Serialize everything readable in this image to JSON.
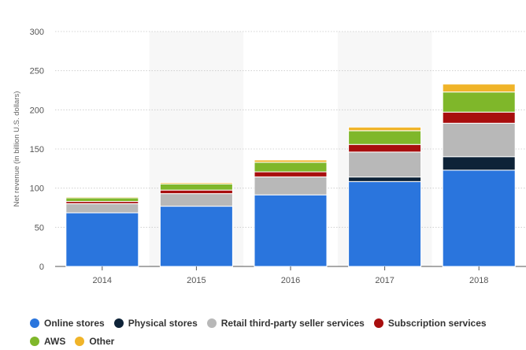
{
  "chart_data": {
    "type": "bar",
    "stacked": true,
    "categories": [
      "2014",
      "2015",
      "2016",
      "2017",
      "2018"
    ],
    "series": [
      {
        "name": "Online stores",
        "color": "#2a75dd",
        "values": [
          68.5,
          76.9,
          91.4,
          108.4,
          123.0
        ]
      },
      {
        "name": "Physical stores",
        "color": "#0e2338",
        "values": [
          0,
          0,
          0,
          5.8,
          17.2
        ]
      },
      {
        "name": "Retail third-party seller services",
        "color": "#b8b8b8",
        "values": [
          11.7,
          16.1,
          22.99,
          31.9,
          42.7
        ]
      },
      {
        "name": "Subscription services",
        "color": "#a80e0e",
        "values": [
          2.8,
          4.5,
          6.4,
          9.7,
          14.2
        ]
      },
      {
        "name": "AWS",
        "color": "#7fb72a",
        "values": [
          4.6,
          7.9,
          12.2,
          17.5,
          25.7
        ]
      },
      {
        "name": "Other",
        "color": "#f0b429",
        "values": [
          1.3,
          1.7,
          2.95,
          4.65,
          10.1
        ]
      }
    ],
    "ylabel": "Net revenue (in billion U.S. dollars)",
    "xlabel": "",
    "ylim": [
      0,
      300
    ],
    "yticks": [
      "0",
      "50",
      "100",
      "150",
      "200",
      "250",
      "300"
    ],
    "grid": true,
    "legend_position": "bottom"
  }
}
